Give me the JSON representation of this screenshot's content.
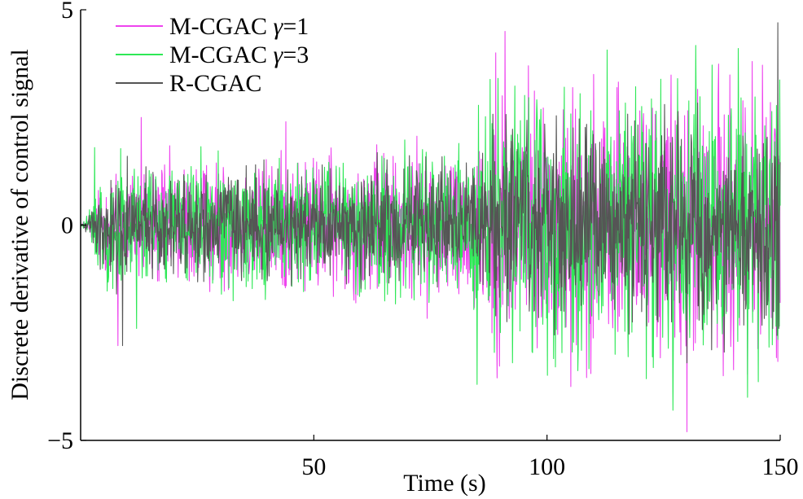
{
  "chart_data": {
    "type": "line",
    "xlabel": "Time (s)",
    "ylabel": "Discrete derivative of control signal",
    "xlim": [
      0,
      150
    ],
    "ylim": [
      -5,
      5
    ],
    "xticks": [
      50,
      100,
      150
    ],
    "xtick_labels": [
      "50",
      "100",
      "150"
    ],
    "yticks": [
      -5,
      0,
      5
    ],
    "ytick_labels": [
      "−5",
      "0",
      "5"
    ],
    "grid": false,
    "legend_position": "top-left",
    "series": [
      {
        "name": "M-CGAC γ=1",
        "label_prefix": "M-CGAC ",
        "label_symbol": "γ",
        "label_suffix": "=1",
        "color": "#ee44ee",
        "amplitude_profile": [
          {
            "x": 0,
            "amp": 0.0
          },
          {
            "x": 2,
            "amp": 0.2
          },
          {
            "x": 5,
            "amp": 0.9
          },
          {
            "x": 10,
            "amp": 1.1
          },
          {
            "x": 30,
            "amp": 1.1
          },
          {
            "x": 60,
            "amp": 1.2
          },
          {
            "x": 85,
            "amp": 1.4
          },
          {
            "x": 88,
            "amp": 2.1
          },
          {
            "x": 120,
            "amp": 2.2
          },
          {
            "x": 150,
            "amp": 2.3
          }
        ],
        "peaks": [
          [
            8,
            -2.8
          ],
          [
            13,
            2.5
          ],
          [
            44,
            2.4
          ],
          [
            89,
            4.0
          ],
          [
            91,
            4.5
          ],
          [
            96,
            3.7
          ],
          [
            110,
            3.5
          ],
          [
            130,
            -4.8
          ],
          [
            144,
            3.8
          ],
          [
            147,
            2.5
          ]
        ]
      },
      {
        "name": "M-CGAC γ=3",
        "label_prefix": "M-CGAC ",
        "label_symbol": "γ",
        "label_suffix": "=3",
        "color": "#2ee856",
        "amplitude_profile": [
          {
            "x": 0,
            "amp": 0.0
          },
          {
            "x": 2,
            "amp": 0.3
          },
          {
            "x": 5,
            "amp": 1.0
          },
          {
            "x": 10,
            "amp": 1.1
          },
          {
            "x": 30,
            "amp": 1.1
          },
          {
            "x": 60,
            "amp": 1.2
          },
          {
            "x": 85,
            "amp": 1.5
          },
          {
            "x": 88,
            "amp": 2.1
          },
          {
            "x": 120,
            "amp": 2.2
          },
          {
            "x": 150,
            "amp": 2.3
          }
        ],
        "peaks": [
          [
            3,
            1.8
          ],
          [
            12,
            -2.4
          ],
          [
            85,
            -3.7
          ],
          [
            127,
            -4.3
          ],
          [
            141,
            4.1
          ],
          [
            143,
            -4.0
          ],
          [
            128,
            3.4
          ]
        ]
      },
      {
        "name": "R-CGAC",
        "label_prefix": "R-CGAC",
        "label_symbol": "",
        "label_suffix": "",
        "color": "#555555",
        "amplitude_profile": [
          {
            "x": 0,
            "amp": 0.0
          },
          {
            "x": 2,
            "amp": 0.2
          },
          {
            "x": 5,
            "amp": 0.8
          },
          {
            "x": 10,
            "amp": 0.9
          },
          {
            "x": 60,
            "amp": 0.9
          },
          {
            "x": 85,
            "amp": 1.1
          },
          {
            "x": 88,
            "amp": 1.6
          },
          {
            "x": 150,
            "amp": 1.8
          }
        ],
        "peaks": [
          [
            9,
            -2.8
          ],
          [
            10,
            1.6
          ],
          [
            130,
            -3.2
          ],
          [
            149.5,
            4.7
          ],
          [
            149.7,
            -2.4
          ]
        ]
      }
    ]
  }
}
